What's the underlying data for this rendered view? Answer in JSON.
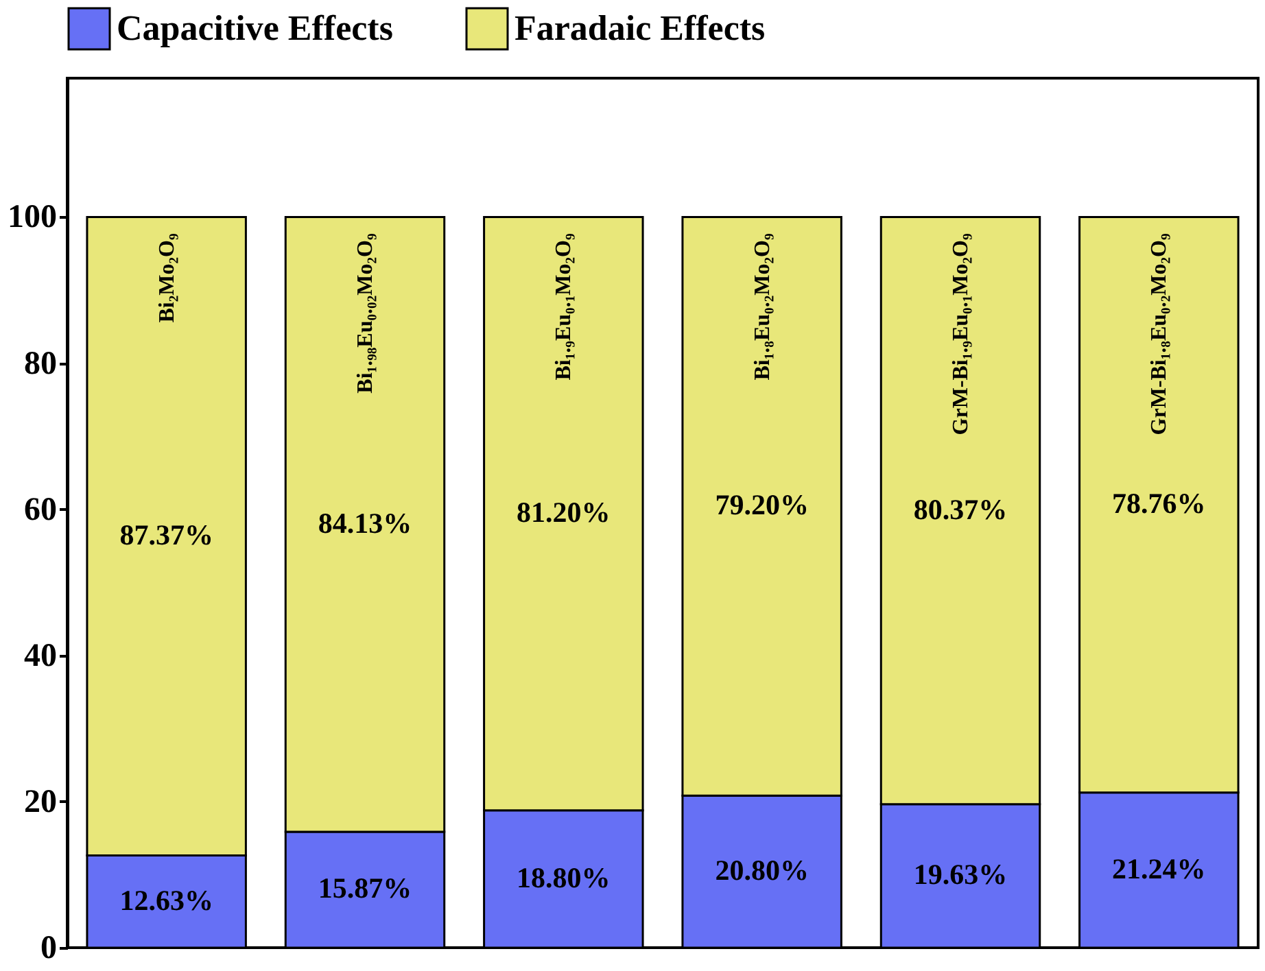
{
  "chart_data": {
    "type": "bar",
    "stacked": true,
    "categories": [
      "Bi₂Mo₂O₉",
      "Bi₁.₉₈Eu₀.₀₂Mo₂O₉",
      "Bi₁.₉Eu₀.₁Mo₂O₉",
      "Bi₁.₈Eu₀.₂Mo₂O₉",
      "GrM-Bi₁.₉Eu₀.₁Mo₂O₉",
      "GrM-Bi₁.₈Eu₀.₂Mo₂O₉"
    ],
    "series": [
      {
        "name": "Capacitive Effects",
        "color": "#6670f5",
        "values": [
          12.63,
          15.87,
          18.8,
          20.8,
          19.63,
          21.24
        ],
        "value_labels": [
          "12.63%",
          "15.87%",
          "18.80%",
          "20.80%",
          "19.63%",
          "21.24%"
        ]
      },
      {
        "name": "Faradaic Effects",
        "color": "#e8e77a",
        "values": [
          87.37,
          84.13,
          81.2,
          79.2,
          80.37,
          78.76
        ],
        "value_labels": [
          "87.37%",
          "84.13%",
          "81.20%",
          "79.20%",
          "80.37%",
          "78.76%"
        ]
      }
    ],
    "ylim": [
      0,
      119
    ],
    "yticks": [
      0,
      20,
      40,
      60,
      80,
      100
    ],
    "grid": false,
    "legend": "top",
    "tick_labels": "y"
  }
}
